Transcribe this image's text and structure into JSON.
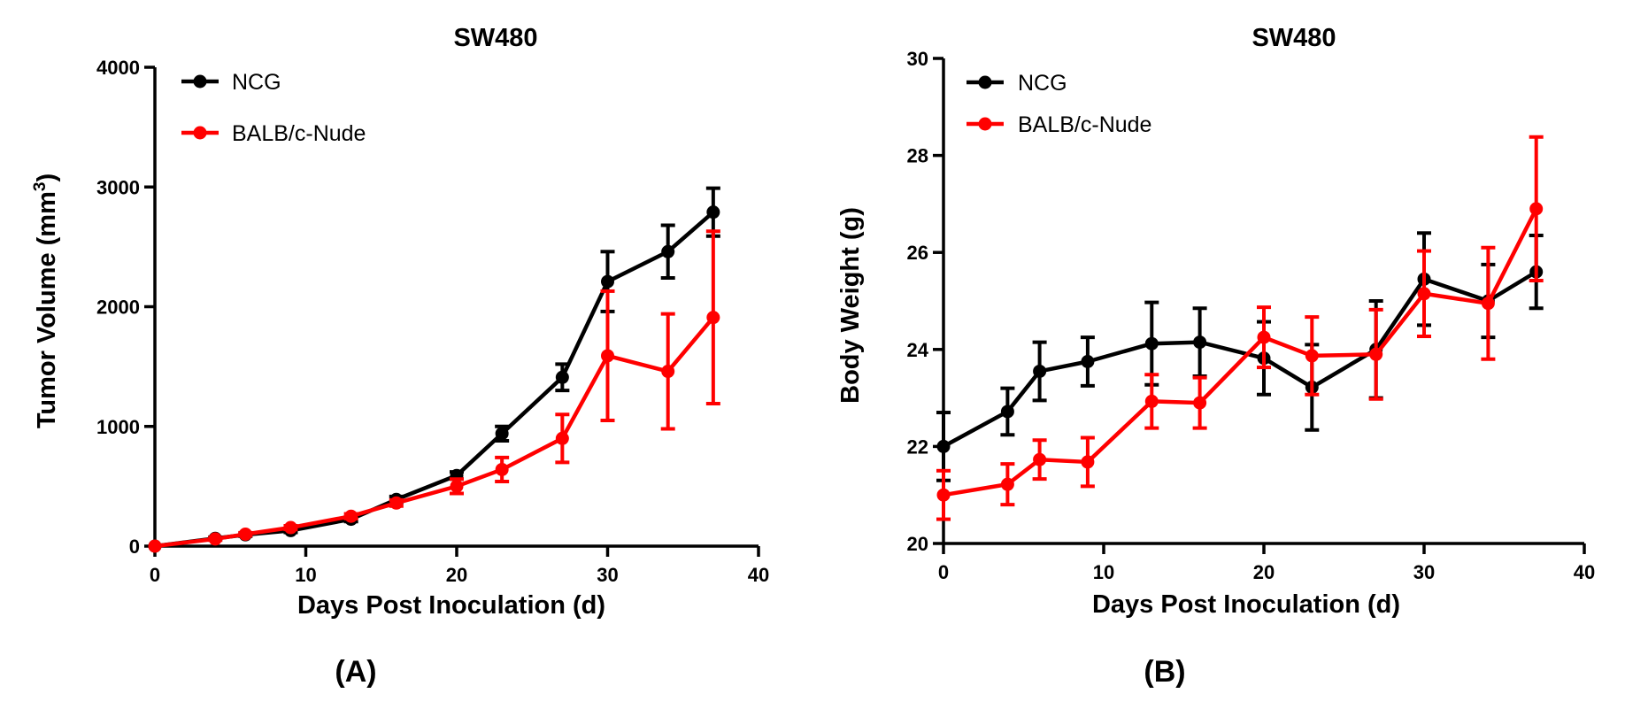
{
  "chart_data": [
    {
      "type": "line",
      "panel_label": "(A)",
      "title": "SW480",
      "xlabel": "Days Post Inoculation (d)",
      "ylabel": "Tumor Volume (mm",
      "ylabel_sup": "3",
      "ylabel_tail": ")",
      "xlim": [
        0,
        40
      ],
      "ylim": [
        0,
        4000
      ],
      "xticks": [
        "0",
        "10",
        "20",
        "30",
        "40"
      ],
      "yticks": [
        "0",
        "1000",
        "2000",
        "3000",
        "4000"
      ],
      "legend_position": "top-left",
      "series": [
        {
          "name": "NCG",
          "color": "#000000",
          "x": [
            0,
            4,
            6,
            9,
            13,
            16,
            20,
            23,
            27,
            30,
            34,
            37
          ],
          "values": [
            0,
            65,
            95,
            130,
            225,
            390,
            590,
            940,
            1410,
            2210,
            2460,
            2790
          ],
          "errors": [
            0,
            10,
            12,
            15,
            20,
            25,
            30,
            60,
            110,
            250,
            220,
            200
          ]
        },
        {
          "name": "BALB/c-Nude",
          "color": "#ff0000",
          "x": [
            0,
            4,
            6,
            9,
            13,
            16,
            20,
            23,
            27,
            30,
            34,
            37
          ],
          "values": [
            0,
            60,
            100,
            155,
            250,
            360,
            500,
            640,
            900,
            1590,
            1460,
            1910
          ],
          "errors": [
            0,
            10,
            12,
            15,
            20,
            25,
            60,
            100,
            200,
            540,
            480,
            720
          ]
        }
      ]
    },
    {
      "type": "line",
      "panel_label": "(B)",
      "title": "SW480",
      "xlabel": "Days Post Inoculation (d)",
      "ylabel": "Body Weight (g)",
      "xlim": [
        0,
        40
      ],
      "ylim": [
        20,
        30
      ],
      "xticks": [
        "0",
        "10",
        "20",
        "30",
        "40"
      ],
      "yticks": [
        "20",
        "22",
        "24",
        "26",
        "28",
        "30"
      ],
      "legend_position": "top-left",
      "series": [
        {
          "name": "NCG",
          "color": "#000000",
          "x": [
            0,
            4,
            6,
            9,
            13,
            16,
            20,
            23,
            27,
            30,
            34,
            37
          ],
          "values": [
            22.0,
            22.72,
            23.55,
            23.75,
            24.12,
            24.15,
            23.82,
            23.22,
            24.0,
            25.45,
            25.0,
            25.6
          ],
          "errors": [
            0.7,
            0.48,
            0.6,
            0.5,
            0.85,
            0.7,
            0.75,
            0.88,
            1.0,
            0.95,
            0.75,
            0.75
          ]
        },
        {
          "name": "BALB/c-Nude",
          "color": "#ff0000",
          "x": [
            0,
            4,
            6,
            9,
            13,
            16,
            20,
            23,
            27,
            30,
            34,
            37
          ],
          "values": [
            21.0,
            21.22,
            21.73,
            21.68,
            22.93,
            22.9,
            24.25,
            23.87,
            23.9,
            25.15,
            24.95,
            26.9
          ],
          "errors": [
            0.5,
            0.42,
            0.4,
            0.5,
            0.55,
            0.52,
            0.62,
            0.8,
            0.92,
            0.88,
            1.15,
            1.48
          ]
        }
      ]
    }
  ]
}
